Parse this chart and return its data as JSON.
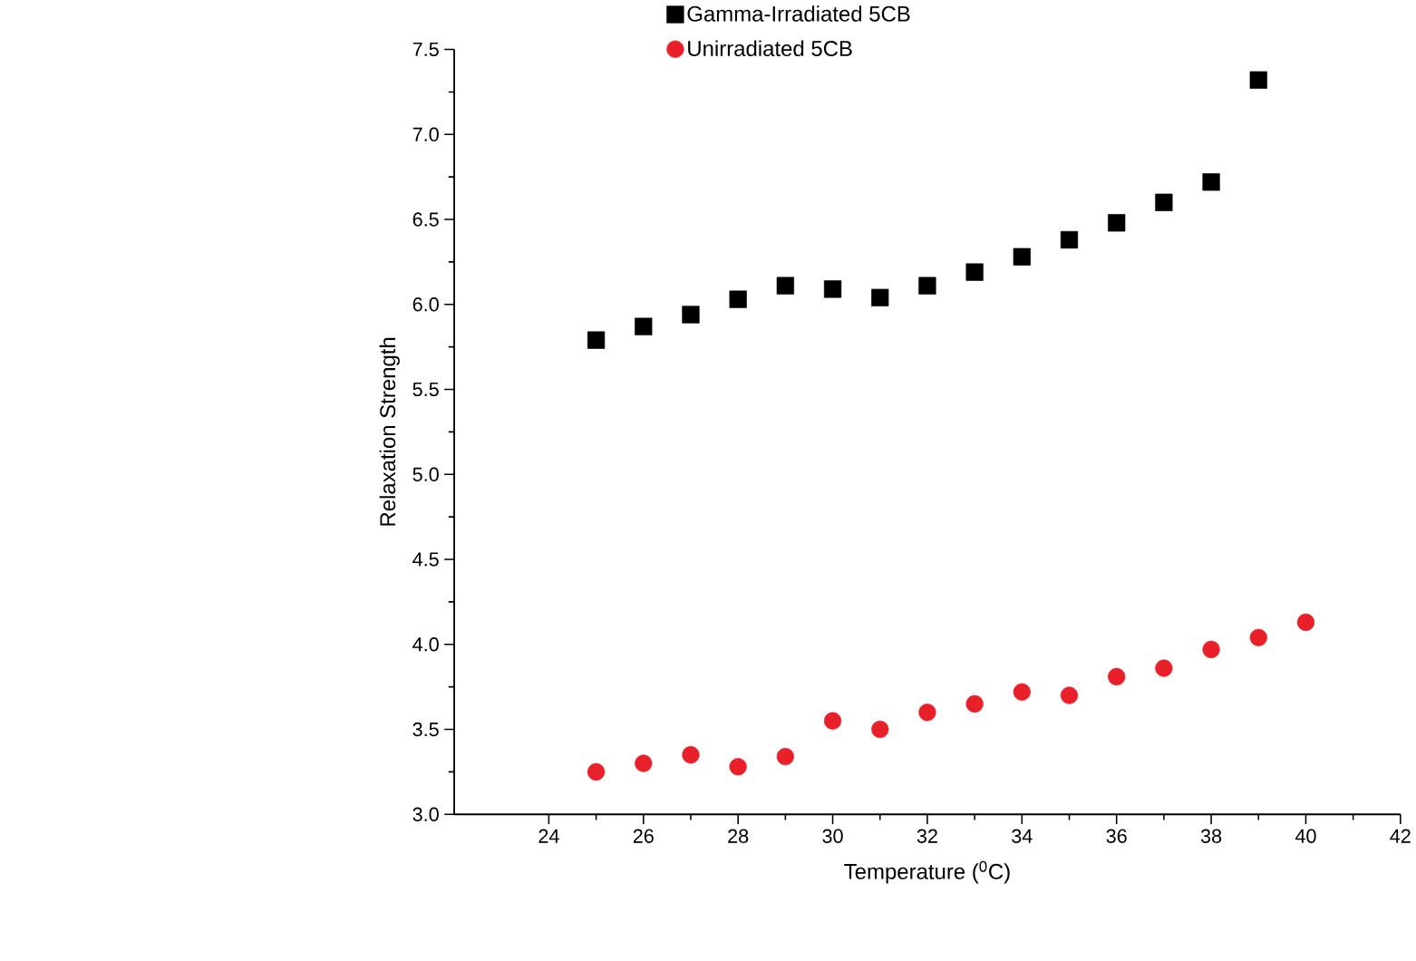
{
  "chart_data": {
    "type": "scatter",
    "xlabel": "Temperature ($^{0}$C)",
    "ylabel": "Relaxation Strength",
    "x": [
      25,
      26,
      27,
      28,
      29,
      30,
      31,
      32,
      33,
      34,
      35,
      36,
      37,
      38,
      39,
      40
    ],
    "series": [
      {
        "name": "Gamma-Irradiated 5CB",
        "color": "#000000",
        "marker": "square",
        "values": [
          5.79,
          5.87,
          5.94,
          6.03,
          6.11,
          6.09,
          6.04,
          6.11,
          6.19,
          6.28,
          6.38,
          6.48,
          6.6,
          6.72,
          7.32,
          null
        ]
      },
      {
        "name": "Unirradiated 5CB",
        "color": "#e8202a",
        "marker": "circle",
        "values": [
          3.25,
          3.3,
          3.35,
          3.28,
          3.34,
          3.55,
          3.5,
          3.6,
          3.65,
          3.72,
          3.7,
          3.81,
          3.86,
          3.97,
          4.04,
          4.13
        ]
      }
    ],
    "xlim": [
      22,
      42
    ],
    "ylim": [
      3.0,
      7.5
    ],
    "xticks": [
      24,
      26,
      28,
      30,
      32,
      34,
      36,
      38,
      40,
      42
    ],
    "yticks": [
      {
        "value": 3.0,
        "label": "3.0"
      },
      {
        "value": 3.5,
        "label": "3.5"
      },
      {
        "value": 4.0,
        "label": "4.0"
      },
      {
        "value": 4.5,
        "label": "4.5"
      },
      {
        "value": 5.0,
        "label": "5.0"
      },
      {
        "value": 5.5,
        "label": "5.5"
      },
      {
        "value": 6.0,
        "label": "6.0"
      },
      {
        "value": 6.5,
        "label": "6.5"
      },
      {
        "value": 7.0,
        "label": "7.0"
      },
      {
        "value": 7.5,
        "label": "7.5"
      }
    ],
    "grid": false,
    "legend": "top"
  }
}
